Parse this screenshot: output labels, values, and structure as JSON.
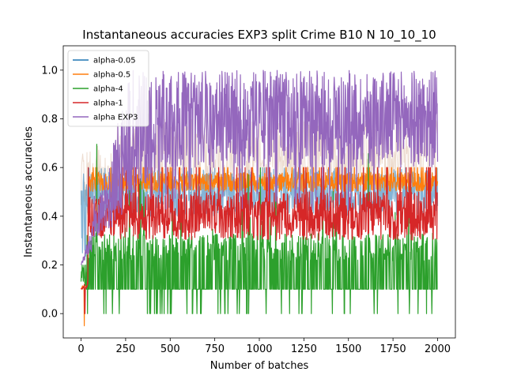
{
  "chart_data": {
    "type": "line",
    "title": "Instantaneous accuracies EXP3 split Crime B10 N 10_10_10",
    "xlabel": "Number of batches",
    "ylabel": "Instantaneous accuracies",
    "xlim": [
      -100,
      2100
    ],
    "ylim": [
      -0.1,
      1.1
    ],
    "xticks": [
      0,
      250,
      500,
      750,
      1000,
      1250,
      1500,
      1750,
      2000
    ],
    "yticks": [
      0.0,
      0.2,
      0.4,
      0.6,
      0.8,
      1.0
    ],
    "grid": false,
    "legend_position": "top-left",
    "n_batches": 2000,
    "series": [
      {
        "name": "alpha-0.05",
        "color": "#1f77b4",
        "description_values": {
          "start": 0.2,
          "early_peak": 0.58,
          "settled_low": 0.4,
          "settled_high": 0.6
        }
      },
      {
        "name": "alpha-0.5",
        "color": "#ff7f0e",
        "description_values": {
          "start": 0.1,
          "min": -0.05,
          "settled_low": 0.5,
          "settled_high": 0.58,
          "spikes_to": 0.6
        }
      },
      {
        "name": "alpha-4",
        "color": "#2ca02c",
        "description_values": {
          "start": 0.1,
          "settled_low": 0.1,
          "settled_high": 0.33,
          "dips_to": 0.0,
          "spikes_to": 0.7
        }
      },
      {
        "name": "alpha-1",
        "color": "#d62728",
        "description_values": {
          "start": 0.1,
          "min": 0.0,
          "settled_low": 0.3,
          "settled_high": 0.5,
          "spikes_to": 0.6
        }
      },
      {
        "name": "alpha EXP3",
        "color": "#9467bd",
        "description_values": {
          "start": 0.2,
          "ramp_end_batch": 450,
          "settled_low": 0.6,
          "settled_high": 1.0,
          "dips_to": 0.42
        }
      }
    ]
  }
}
